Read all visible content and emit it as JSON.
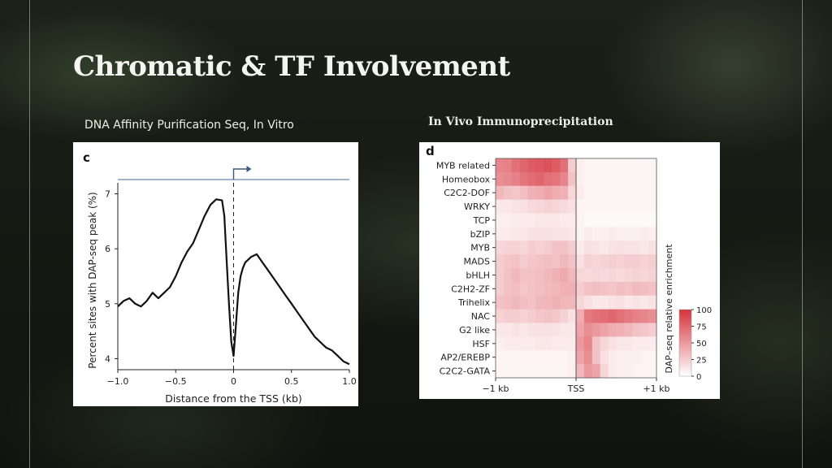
{
  "slide": {
    "title": "Chromatic & TF Involvement",
    "left_caption": "DNA Affinity Purification Seq, In Vitro",
    "right_caption": "In Vivo Immunoprecipitation"
  },
  "chart_data": [
    {
      "panel_label": "c",
      "type": "line",
      "xlabel": "Distance from the TSS (kb)",
      "ylabel": "Percent sites with DAP-seq peak (%)",
      "xlim": [
        -1.0,
        1.0
      ],
      "ylim": [
        3.8,
        7.2
      ],
      "xticks": [
        "-1.0",
        "-0.5",
        "0",
        "0.5",
        "1.0"
      ],
      "yticks": [
        "4",
        "5",
        "6",
        "7"
      ],
      "x": [
        -1.0,
        -0.95,
        -0.9,
        -0.85,
        -0.8,
        -0.75,
        -0.7,
        -0.65,
        -0.6,
        -0.55,
        -0.5,
        -0.45,
        -0.4,
        -0.35,
        -0.3,
        -0.25,
        -0.2,
        -0.15,
        -0.1,
        -0.08,
        -0.06,
        -0.04,
        -0.02,
        0.0,
        0.02,
        0.04,
        0.06,
        0.08,
        0.1,
        0.15,
        0.2,
        0.25,
        0.3,
        0.35,
        0.4,
        0.45,
        0.5,
        0.55,
        0.6,
        0.65,
        0.7,
        0.75,
        0.8,
        0.85,
        0.9,
        0.95,
        1.0
      ],
      "y": [
        4.95,
        5.05,
        5.1,
        5.0,
        4.95,
        5.05,
        5.2,
        5.1,
        5.2,
        5.3,
        5.5,
        5.75,
        5.95,
        6.1,
        6.35,
        6.6,
        6.8,
        6.9,
        6.88,
        6.6,
        5.8,
        5.0,
        4.3,
        4.05,
        4.6,
        5.2,
        5.5,
        5.65,
        5.75,
        5.85,
        5.9,
        5.75,
        5.6,
        5.45,
        5.3,
        5.15,
        5.0,
        4.85,
        4.7,
        4.55,
        4.4,
        4.3,
        4.2,
        4.15,
        4.05,
        3.95,
        3.9
      ],
      "tss_marker": "arrow at TSS"
    },
    {
      "panel_label": "d",
      "type": "heatmap",
      "rows": [
        "MYB related",
        "Homeobox",
        "C2C2-DOF",
        "WRKY",
        "TCP",
        "bZIP",
        "MYB",
        "MADS",
        "bHLH",
        "C2H2-ZF",
        "Trihelix",
        "NAC",
        "G2 like",
        "HSF",
        "AP2/EREBP",
        "C2C2-GATA"
      ],
      "xticks": [
        "−1 kb",
        "TSS",
        "+1 kb"
      ],
      "colorbar_label": "DAP–seq relative enrichment",
      "colorbar_ticks": [
        "100",
        "75",
        "50",
        "25",
        "0"
      ],
      "color_low": "#ffffff",
      "color_high": "#d6333d",
      "n_cols": 20,
      "tss_col": 10,
      "values": [
        [
          60,
          62,
          70,
          75,
          80,
          82,
          85,
          80,
          70,
          25,
          8,
          5,
          5,
          5,
          5,
          5,
          5,
          5,
          5,
          5
        ],
        [
          55,
          58,
          62,
          68,
          72,
          75,
          70,
          68,
          60,
          30,
          8,
          5,
          5,
          5,
          5,
          5,
          5,
          5,
          5,
          5
        ],
        [
          35,
          30,
          28,
          32,
          38,
          40,
          45,
          40,
          38,
          20,
          10,
          5,
          5,
          5,
          5,
          5,
          5,
          5,
          5,
          5
        ],
        [
          12,
          12,
          14,
          15,
          18,
          20,
          22,
          20,
          18,
          15,
          5,
          5,
          5,
          5,
          5,
          5,
          5,
          5,
          5,
          5
        ],
        [
          8,
          8,
          10,
          10,
          10,
          12,
          12,
          12,
          10,
          10,
          5,
          3,
          3,
          3,
          3,
          3,
          3,
          3,
          3,
          3
        ],
        [
          10,
          10,
          12,
          12,
          14,
          15,
          15,
          14,
          14,
          12,
          5,
          10,
          8,
          8,
          10,
          8,
          8,
          8,
          10,
          8
        ],
        [
          20,
          22,
          22,
          20,
          25,
          22,
          25,
          30,
          30,
          25,
          10,
          15,
          14,
          12,
          14,
          15,
          14,
          14,
          12,
          14
        ],
        [
          25,
          28,
          30,
          25,
          28,
          30,
          32,
          30,
          35,
          30,
          15,
          22,
          20,
          22,
          24,
          22,
          25,
          25,
          22,
          24
        ],
        [
          25,
          30,
          35,
          30,
          30,
          32,
          35,
          38,
          42,
          35,
          20,
          18,
          20,
          18,
          20,
          18,
          20,
          22,
          20,
          22
        ],
        [
          25,
          30,
          32,
          28,
          30,
          32,
          34,
          35,
          38,
          38,
          25,
          30,
          32,
          30,
          28,
          32,
          30,
          34,
          32,
          30
        ],
        [
          30,
          32,
          35,
          32,
          30,
          35,
          36,
          38,
          35,
          35,
          20,
          15,
          12,
          12,
          14,
          15,
          12,
          14,
          12,
          14
        ],
        [
          22,
          25,
          24,
          22,
          25,
          28,
          30,
          28,
          22,
          15,
          40,
          65,
          70,
          72,
          75,
          70,
          65,
          62,
          60,
          55
        ],
        [
          12,
          12,
          14,
          12,
          14,
          15,
          15,
          14,
          12,
          12,
          45,
          55,
          50,
          45,
          40,
          38,
          35,
          30,
          28,
          25
        ],
        [
          8,
          10,
          10,
          10,
          10,
          12,
          12,
          10,
          10,
          10,
          50,
          60,
          30,
          20,
          15,
          12,
          12,
          10,
          10,
          10
        ],
        [
          5,
          5,
          5,
          6,
          6,
          6,
          6,
          6,
          6,
          8,
          45,
          55,
          30,
          15,
          10,
          8,
          8,
          8,
          6,
          6
        ],
        [
          5,
          5,
          5,
          5,
          5,
          5,
          5,
          5,
          5,
          8,
          35,
          50,
          45,
          20,
          10,
          8,
          8,
          6,
          6,
          6
        ]
      ]
    }
  ]
}
